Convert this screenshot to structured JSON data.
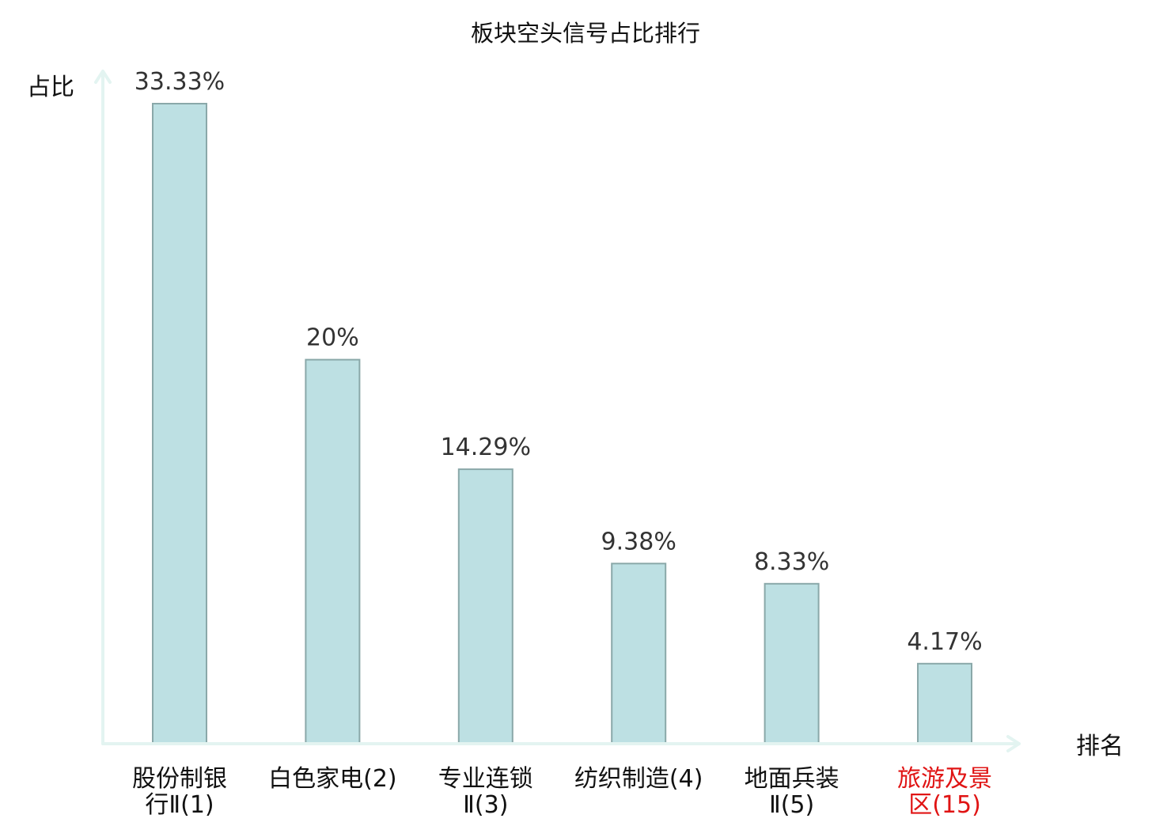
{
  "chart_data": {
    "type": "bar",
    "title": "板块空头信号占比排行",
    "ylabel": "占比",
    "xlabel": "排名",
    "categories": [
      [
        "股份制银",
        "行Ⅱ(1)"
      ],
      [
        "白色家电(2)"
      ],
      [
        "专业连锁",
        "Ⅱ(3)"
      ],
      [
        "纺织制造(4)"
      ],
      [
        "地面兵装",
        "Ⅱ(5)"
      ],
      [
        "旅游及景",
        "区(15)"
      ]
    ],
    "values": [
      33.33,
      20,
      14.29,
      9.38,
      8.33,
      4.17
    ],
    "value_labels": [
      "33.33%",
      "20%",
      "14.29%",
      "9.38%",
      "8.33%",
      "4.17%"
    ],
    "highlight_index": 5,
    "ylim": [
      0,
      33.33
    ],
    "grid": false,
    "legend": "none",
    "colors": {
      "bar_fill": "#bde0e3",
      "bar_stroke": "#8aa8a9",
      "axis": "#e3f4f1",
      "label": "#111111",
      "value_label": "#333333",
      "highlight": "#e01414"
    }
  }
}
